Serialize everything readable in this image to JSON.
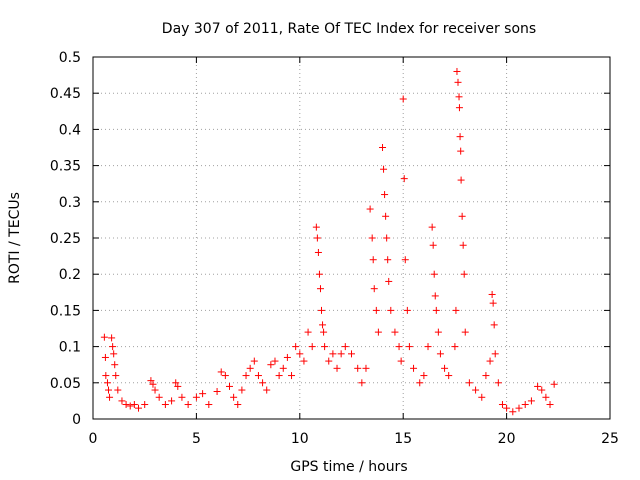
{
  "chart_data": {
    "type": "scatter",
    "title": "Day 307 of 2011, Rate Of TEC Index for receiver sons",
    "xlabel": "GPS time / hours",
    "ylabel": "ROTI / TECUs",
    "xlim": [
      0,
      25
    ],
    "ylim": [
      0,
      0.5
    ],
    "xticks": [
      "0",
      "5",
      "10",
      "15",
      "20",
      "25"
    ],
    "yticks": [
      "0",
      "0.05",
      "0.1",
      "0.15",
      "0.2",
      "0.25",
      "0.3",
      "0.35",
      "0.4",
      "0.45",
      "0.5"
    ],
    "grid": true,
    "marker": "+",
    "color": "#ff0000",
    "series": [
      {
        "points": [
          [
            0.55,
            0.113
          ],
          [
            0.6,
            0.085
          ],
          [
            0.62,
            0.06
          ],
          [
            0.7,
            0.05
          ],
          [
            0.75,
            0.04
          ],
          [
            0.8,
            0.03
          ],
          [
            0.9,
            0.112
          ],
          [
            0.95,
            0.1
          ],
          [
            1.0,
            0.09
          ],
          [
            1.05,
            0.075
          ],
          [
            1.1,
            0.06
          ],
          [
            1.2,
            0.04
          ],
          [
            1.4,
            0.025
          ],
          [
            1.6,
            0.02
          ],
          [
            1.8,
            0.018
          ],
          [
            2.0,
            0.02
          ],
          [
            2.2,
            0.015
          ],
          [
            2.5,
            0.02
          ],
          [
            2.8,
            0.053
          ],
          [
            2.9,
            0.048
          ],
          [
            3.0,
            0.04
          ],
          [
            3.2,
            0.03
          ],
          [
            3.5,
            0.02
          ],
          [
            3.8,
            0.025
          ],
          [
            4.0,
            0.05
          ],
          [
            4.1,
            0.045
          ],
          [
            4.3,
            0.03
          ],
          [
            4.6,
            0.02
          ],
          [
            5.0,
            0.03
          ],
          [
            5.3,
            0.035
          ],
          [
            5.6,
            0.02
          ],
          [
            6.0,
            0.038
          ],
          [
            6.2,
            0.065
          ],
          [
            6.4,
            0.06
          ],
          [
            6.6,
            0.045
          ],
          [
            6.8,
            0.03
          ],
          [
            7.0,
            0.02
          ],
          [
            7.2,
            0.04
          ],
          [
            7.4,
            0.06
          ],
          [
            7.6,
            0.07
          ],
          [
            7.8,
            0.08
          ],
          [
            8.0,
            0.06
          ],
          [
            8.2,
            0.05
          ],
          [
            8.4,
            0.04
          ],
          [
            8.6,
            0.075
          ],
          [
            8.8,
            0.08
          ],
          [
            9.0,
            0.06
          ],
          [
            9.2,
            0.07
          ],
          [
            9.4,
            0.085
          ],
          [
            9.6,
            0.06
          ],
          [
            9.8,
            0.1
          ],
          [
            10.0,
            0.09
          ],
          [
            10.2,
            0.08
          ],
          [
            10.4,
            0.12
          ],
          [
            10.6,
            0.1
          ],
          [
            10.8,
            0.265
          ],
          [
            10.85,
            0.25
          ],
          [
            10.9,
            0.23
          ],
          [
            10.95,
            0.2
          ],
          [
            11.0,
            0.18
          ],
          [
            11.05,
            0.15
          ],
          [
            11.1,
            0.13
          ],
          [
            11.15,
            0.12
          ],
          [
            11.2,
            0.1
          ],
          [
            11.4,
            0.08
          ],
          [
            11.6,
            0.09
          ],
          [
            11.8,
            0.07
          ],
          [
            12.0,
            0.09
          ],
          [
            12.2,
            0.1
          ],
          [
            12.5,
            0.09
          ],
          [
            12.8,
            0.07
          ],
          [
            13.0,
            0.05
          ],
          [
            13.2,
            0.07
          ],
          [
            13.4,
            0.29
          ],
          [
            13.5,
            0.25
          ],
          [
            13.55,
            0.22
          ],
          [
            13.6,
            0.18
          ],
          [
            13.7,
            0.15
          ],
          [
            13.8,
            0.12
          ],
          [
            14.0,
            0.375
          ],
          [
            14.05,
            0.345
          ],
          [
            14.1,
            0.31
          ],
          [
            14.15,
            0.28
          ],
          [
            14.2,
            0.25
          ],
          [
            14.25,
            0.22
          ],
          [
            14.3,
            0.19
          ],
          [
            14.4,
            0.15
          ],
          [
            14.6,
            0.12
          ],
          [
            14.8,
            0.1
          ],
          [
            14.9,
            0.08
          ],
          [
            15.0,
            0.442
          ],
          [
            15.05,
            0.332
          ],
          [
            15.1,
            0.22
          ],
          [
            15.2,
            0.15
          ],
          [
            15.3,
            0.1
          ],
          [
            15.5,
            0.07
          ],
          [
            15.8,
            0.05
          ],
          [
            16.0,
            0.06
          ],
          [
            16.2,
            0.1
          ],
          [
            16.4,
            0.265
          ],
          [
            16.45,
            0.24
          ],
          [
            16.5,
            0.2
          ],
          [
            16.55,
            0.17
          ],
          [
            16.6,
            0.15
          ],
          [
            16.7,
            0.12
          ],
          [
            16.8,
            0.09
          ],
          [
            17.0,
            0.07
          ],
          [
            17.2,
            0.06
          ],
          [
            17.5,
            0.1
          ],
          [
            17.55,
            0.15
          ],
          [
            17.6,
            0.48
          ],
          [
            17.65,
            0.465
          ],
          [
            17.7,
            0.445
          ],
          [
            17.72,
            0.43
          ],
          [
            17.75,
            0.39
          ],
          [
            17.78,
            0.37
          ],
          [
            17.8,
            0.33
          ],
          [
            17.85,
            0.28
          ],
          [
            17.9,
            0.24
          ],
          [
            17.95,
            0.2
          ],
          [
            18.0,
            0.12
          ],
          [
            18.2,
            0.05
          ],
          [
            18.5,
            0.04
          ],
          [
            18.8,
            0.03
          ],
          [
            19.0,
            0.06
          ],
          [
            19.2,
            0.08
          ],
          [
            19.3,
            0.172
          ],
          [
            19.35,
            0.16
          ],
          [
            19.4,
            0.13
          ],
          [
            19.45,
            0.09
          ],
          [
            19.6,
            0.05
          ],
          [
            19.8,
            0.02
          ],
          [
            20.0,
            0.015
          ],
          [
            20.3,
            0.01
          ],
          [
            20.6,
            0.015
          ],
          [
            20.9,
            0.02
          ],
          [
            21.2,
            0.025
          ],
          [
            21.5,
            0.045
          ],
          [
            21.7,
            0.04
          ],
          [
            21.9,
            0.03
          ],
          [
            22.1,
            0.02
          ],
          [
            22.3,
            0.048
          ]
        ]
      }
    ]
  }
}
